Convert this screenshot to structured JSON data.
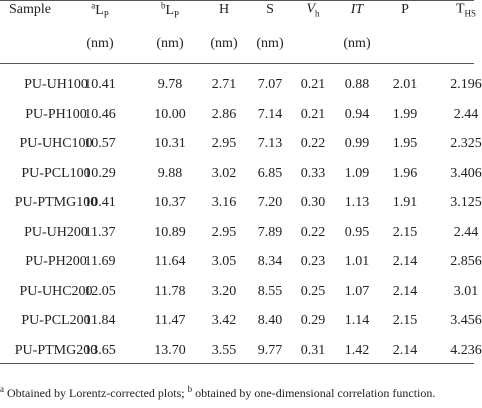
{
  "table": {
    "columns": [
      {
        "main": "Sample"
      },
      {
        "sup": "a",
        "main": "L",
        "sub": "P",
        "unit": "(nm)"
      },
      {
        "sup": "b",
        "main": "L",
        "sub": "P",
        "unit": "(nm)"
      },
      {
        "main": "H",
        "unit": "(nm)"
      },
      {
        "main": "S",
        "unit": "(nm)"
      },
      {
        "main": "V",
        "sub": "h",
        "italic": true
      },
      {
        "main": "IT",
        "italic": true,
        "unit": "(nm)"
      },
      {
        "main": "P"
      },
      {
        "main": "T",
        "sub": "HS"
      }
    ],
    "rows": [
      [
        "PU-UH100",
        "10.41",
        "9.78",
        "2.71",
        "7.07",
        "0.21",
        "0.88",
        "2.01",
        "2.196"
      ],
      [
        "PU-PH100",
        "10.46",
        "10.00",
        "2.86",
        "7.14",
        "0.21",
        "0.94",
        "1.99",
        "2.44"
      ],
      [
        "PU-UHC100",
        "10.57",
        "10.31",
        "2.95",
        "7.13",
        "0.22",
        "0.99",
        "1.95",
        "2.325"
      ],
      [
        "PU-PCL100",
        "10.29",
        "9.88",
        "3.02",
        "6.85",
        "0.33",
        "1.09",
        "1.96",
        "3.406"
      ],
      [
        "PU-PTMG100",
        "10.41",
        "10.37",
        "3.16",
        "7.20",
        "0.30",
        "1.13",
        "1.91",
        "3.125"
      ],
      [
        "PU-UH200",
        "11.37",
        "10.89",
        "2.95",
        "7.89",
        "0.22",
        "0.95",
        "2.15",
        "2.44"
      ],
      [
        "PU-PH200",
        "11.69",
        "11.64",
        "3.05",
        "8.34",
        "0.23",
        "1.01",
        "2.14",
        "2.856"
      ],
      [
        "PU-UHC200",
        "12.05",
        "11.78",
        "3.20",
        "8.55",
        "0.25",
        "1.07",
        "2.14",
        "3.01"
      ],
      [
        "PU-PCL200",
        "11.84",
        "11.47",
        "3.42",
        "8.40",
        "0.29",
        "1.14",
        "2.15",
        "3.456"
      ],
      [
        "PU-PTMG200",
        "13.65",
        "13.70",
        "3.55",
        "9.77",
        "0.31",
        "1.42",
        "2.14",
        "4.236"
      ]
    ]
  },
  "footnote": [
    {
      "sup": "a"
    },
    {
      "text": " Obtained by Lorentz-corrected plots; "
    },
    {
      "sup": "b"
    },
    {
      "text": " obtained by one-dimensional correlation function."
    }
  ]
}
